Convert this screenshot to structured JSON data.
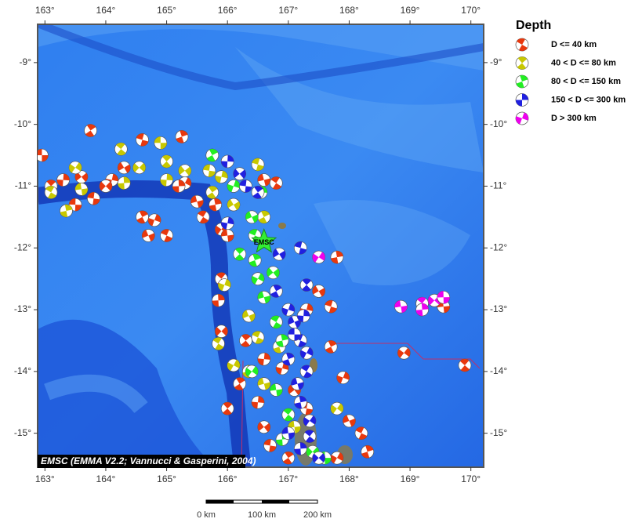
{
  "map": {
    "xlim": [
      162.88,
      170.21
    ],
    "ylim": [
      -15.55,
      -8.38
    ],
    "xticks": [
      {
        "value": 163,
        "label": "163°"
      },
      {
        "value": 164,
        "label": "164°"
      },
      {
        "value": 165,
        "label": "165°"
      },
      {
        "value": 166,
        "label": "166°"
      },
      {
        "value": 167,
        "label": "167°"
      },
      {
        "value": 168,
        "label": "168°"
      },
      {
        "value": 169,
        "label": "169°"
      },
      {
        "value": 170,
        "label": "170°"
      }
    ],
    "yticks": [
      {
        "value": -9,
        "label": "-9°"
      },
      {
        "value": -10,
        "label": "-10°"
      },
      {
        "value": -11,
        "label": "-11°"
      },
      {
        "value": -12,
        "label": "-12°"
      },
      {
        "value": -13,
        "label": "-13°"
      },
      {
        "value": -14,
        "label": "-14°"
      },
      {
        "value": -15,
        "label": "-15°"
      }
    ],
    "station": {
      "label": "EMSC",
      "lon": 166.6,
      "lat": -11.9
    },
    "credit": "EMSC (EMMA V2.2; Vannucci & Gasperini, 2004)"
  },
  "legend": {
    "title": "Depth",
    "items": [
      {
        "label": "D <= 40 km",
        "color": "#e8380d",
        "events": [
          [
            162.95,
            -10.5
          ],
          [
            163.1,
            -11.0
          ],
          [
            163.3,
            -10.9
          ],
          [
            163.6,
            -10.85
          ],
          [
            163.8,
            -11.2
          ],
          [
            163.75,
            -10.1
          ],
          [
            164.1,
            -10.9
          ],
          [
            164.3,
            -10.7
          ],
          [
            164.6,
            -10.25
          ],
          [
            164.6,
            -11.5
          ],
          [
            164.8,
            -11.55
          ],
          [
            164.7,
            -11.8
          ],
          [
            165.0,
            -11.8
          ],
          [
            165.25,
            -10.2
          ],
          [
            165.3,
            -10.95
          ],
          [
            165.5,
            -11.25
          ],
          [
            165.6,
            -11.5
          ],
          [
            165.8,
            -11.3
          ],
          [
            165.9,
            -11.7
          ],
          [
            166.0,
            -11.8
          ],
          [
            165.9,
            -12.5
          ],
          [
            165.85,
            -12.85
          ],
          [
            165.9,
            -13.35
          ],
          [
            166.1,
            -13.9
          ],
          [
            166.0,
            -14.6
          ],
          [
            166.5,
            -14.5
          ],
          [
            166.6,
            -14.9
          ],
          [
            166.7,
            -15.2
          ],
          [
            167.0,
            -15.4
          ],
          [
            167.3,
            -13.0
          ],
          [
            167.5,
            -12.7
          ],
          [
            167.7,
            -12.95
          ],
          [
            167.7,
            -13.6
          ],
          [
            167.9,
            -14.1
          ],
          [
            168.0,
            -14.8
          ],
          [
            168.2,
            -15.0
          ],
          [
            168.3,
            -15.3
          ],
          [
            167.8,
            -15.4
          ],
          [
            166.6,
            -10.9
          ],
          [
            166.8,
            -10.95
          ],
          [
            167.8,
            -12.15
          ],
          [
            168.9,
            -13.7
          ],
          [
            169.55,
            -12.95
          ],
          [
            169.9,
            -13.9
          ],
          [
            165.2,
            -11.0
          ],
          [
            164.0,
            -11.0
          ],
          [
            163.5,
            -11.3
          ],
          [
            166.3,
            -13.5
          ],
          [
            166.6,
            -13.8
          ],
          [
            167.1,
            -14.3
          ],
          [
            167.3,
            -14.6
          ],
          [
            166.2,
            -14.2
          ],
          [
            166.9,
            -13.95
          ]
        ]
      },
      {
        "label": "40 < D <= 80 km",
        "color": "#c8c800",
        "events": [
          [
            163.1,
            -11.1
          ],
          [
            163.35,
            -11.4
          ],
          [
            163.5,
            -10.7
          ],
          [
            163.6,
            -11.05
          ],
          [
            164.25,
            -10.4
          ],
          [
            164.3,
            -10.95
          ],
          [
            164.55,
            -10.7
          ],
          [
            164.9,
            -10.3
          ],
          [
            165.0,
            -10.6
          ],
          [
            165.0,
            -10.9
          ],
          [
            165.3,
            -10.75
          ],
          [
            165.7,
            -10.75
          ],
          [
            165.75,
            -11.1
          ],
          [
            165.9,
            -10.85
          ],
          [
            166.1,
            -11.3
          ],
          [
            166.5,
            -10.65
          ],
          [
            166.6,
            -11.5
          ],
          [
            165.95,
            -12.6
          ],
          [
            166.35,
            -13.1
          ],
          [
            166.5,
            -13.45
          ],
          [
            166.85,
            -13.6
          ],
          [
            166.1,
            -13.9
          ],
          [
            166.6,
            -14.2
          ],
          [
            165.85,
            -13.55
          ],
          [
            166.35,
            -14.0
          ],
          [
            167.8,
            -14.6
          ],
          [
            167.1,
            -14.9
          ]
        ]
      },
      {
        "label": "80 < D <= 150 km",
        "color": "#22ee22",
        "events": [
          [
            165.75,
            -10.5
          ],
          [
            166.1,
            -11.0
          ],
          [
            166.4,
            -11.5
          ],
          [
            166.45,
            -11.8
          ],
          [
            166.45,
            -12.2
          ],
          [
            166.5,
            -12.5
          ],
          [
            166.6,
            -12.8
          ],
          [
            166.8,
            -13.2
          ],
          [
            166.9,
            -13.5
          ],
          [
            166.4,
            -14.0
          ],
          [
            166.8,
            -14.3
          ],
          [
            167.0,
            -14.7
          ],
          [
            166.9,
            -15.1
          ],
          [
            167.4,
            -15.3
          ],
          [
            167.6,
            -15.4
          ],
          [
            166.2,
            -12.1
          ],
          [
            166.55,
            -11.1
          ],
          [
            166.75,
            -12.4
          ]
        ]
      },
      {
        "label": "150 < D <= 300 km",
        "color": "#2020e0",
        "events": [
          [
            166.0,
            -10.6
          ],
          [
            166.2,
            -10.8
          ],
          [
            166.3,
            -11.0
          ],
          [
            166.5,
            -11.1
          ],
          [
            166.0,
            -11.6
          ],
          [
            166.85,
            -12.1
          ],
          [
            167.2,
            -12.0
          ],
          [
            166.8,
            -12.7
          ],
          [
            167.0,
            -13.0
          ],
          [
            167.1,
            -13.2
          ],
          [
            167.2,
            -13.5
          ],
          [
            167.0,
            -13.8
          ],
          [
            167.3,
            -13.7
          ],
          [
            167.15,
            -14.2
          ],
          [
            167.3,
            -14.0
          ],
          [
            167.2,
            -14.5
          ],
          [
            167.35,
            -14.8
          ],
          [
            167.0,
            -15.0
          ],
          [
            167.35,
            -15.05
          ],
          [
            167.2,
            -15.25
          ],
          [
            167.5,
            -15.4
          ],
          [
            167.1,
            -13.4
          ],
          [
            167.3,
            -12.6
          ],
          [
            167.25,
            -13.1
          ]
        ]
      },
      {
        "label": "D > 300 km",
        "color": "#ee00ee",
        "events": [
          [
            167.5,
            -12.15
          ],
          [
            168.85,
            -12.95
          ],
          [
            169.2,
            -12.9
          ],
          [
            169.2,
            -13.0
          ],
          [
            169.4,
            -12.85
          ],
          [
            169.55,
            -12.8
          ]
        ]
      }
    ]
  },
  "scale_bar": {
    "labels": [
      "0 km",
      "100 km",
      "200 km"
    ]
  }
}
